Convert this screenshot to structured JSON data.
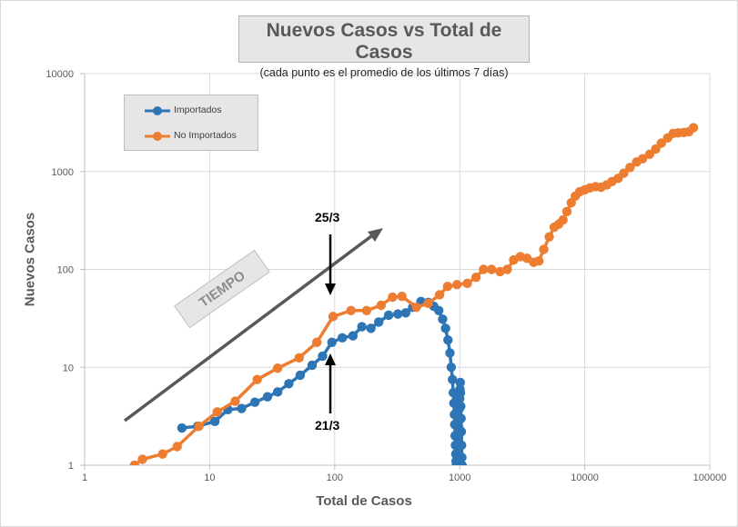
{
  "chart_data": {
    "type": "line",
    "title": "Nuevos Casos vs Total de Casos",
    "subtitle": "(cada punto es el promedio de los últimos 7 días)",
    "xlabel": "Total de Casos",
    "ylabel": "Nuevos Casos",
    "x_scale": "log",
    "y_scale": "log",
    "xlim": [
      1,
      100000
    ],
    "ylim": [
      1,
      10000
    ],
    "x_ticks": [
      "1",
      "10",
      "100",
      "1000",
      "10000",
      "100000"
    ],
    "y_ticks": [
      "1",
      "10",
      "100",
      "1000",
      "10000"
    ],
    "grid": true,
    "legend": "top-left",
    "series": [
      {
        "name": "Importados",
        "color": "#2e75b6",
        "points": [
          [
            6,
            2.4
          ],
          [
            8,
            2.5
          ],
          [
            11,
            2.8
          ],
          [
            14,
            3.7
          ],
          [
            18,
            3.8
          ],
          [
            23,
            4.4
          ],
          [
            29,
            5.0
          ],
          [
            35,
            5.6
          ],
          [
            43,
            6.8
          ],
          [
            53,
            8.3
          ],
          [
            66,
            10.5
          ],
          [
            80,
            13
          ],
          [
            95,
            18
          ],
          [
            115,
            20
          ],
          [
            140,
            21
          ],
          [
            165,
            26
          ],
          [
            195,
            25
          ],
          [
            225,
            29
          ],
          [
            270,
            34
          ],
          [
            320,
            35
          ],
          [
            370,
            36
          ],
          [
            420,
            41
          ],
          [
            490,
            47
          ],
          [
            560,
            46
          ],
          [
            620,
            42
          ],
          [
            680,
            38
          ],
          [
            730,
            31
          ],
          [
            770,
            25
          ],
          [
            805,
            19
          ],
          [
            835,
            14
          ],
          [
            855,
            10
          ],
          [
            875,
            7.5
          ],
          [
            888,
            5.5
          ],
          [
            898,
            4.3
          ],
          [
            906,
            3.3
          ],
          [
            912,
            2.6
          ],
          [
            918,
            2.0
          ],
          [
            924,
            1.6
          ],
          [
            930,
            1.3
          ],
          [
            934,
            1.1
          ],
          [
            940,
            1.0
          ],
          [
            955,
            1.2
          ],
          [
            965,
            1.5
          ],
          [
            975,
            1.9
          ],
          [
            985,
            2.4
          ],
          [
            990,
            3.0
          ],
          [
            995,
            3.8
          ],
          [
            1000,
            4.8
          ],
          [
            1005,
            6.0
          ],
          [
            1010,
            7.0
          ],
          [
            1015,
            5.5
          ],
          [
            1020,
            4.0
          ],
          [
            1025,
            3.0
          ],
          [
            1030,
            2.2
          ],
          [
            1035,
            1.6
          ],
          [
            1040,
            1.2
          ],
          [
            1045,
            1.0
          ]
        ]
      },
      {
        "name": "No Importados",
        "color": "#ed7d31",
        "points": [
          [
            2.5,
            1.0
          ],
          [
            2.9,
            1.15
          ],
          [
            4.2,
            1.3
          ],
          [
            5.5,
            1.55
          ],
          [
            8.2,
            2.5
          ],
          [
            11.5,
            3.5
          ],
          [
            16,
            4.5
          ],
          [
            24,
            7.5
          ],
          [
            35,
            9.8
          ],
          [
            52,
            12.5
          ],
          [
            72,
            18
          ],
          [
            97,
            33
          ],
          [
            135,
            38
          ],
          [
            180,
            38
          ],
          [
            235,
            43
          ],
          [
            290,
            52
          ],
          [
            345,
            53
          ],
          [
            450,
            41
          ],
          [
            560,
            45
          ],
          [
            690,
            55
          ],
          [
            800,
            67
          ],
          [
            950,
            70
          ],
          [
            1150,
            72
          ],
          [
            1350,
            83
          ],
          [
            1550,
            100
          ],
          [
            1800,
            100
          ],
          [
            2100,
            95
          ],
          [
            2400,
            100
          ],
          [
            2700,
            125
          ],
          [
            3050,
            135
          ],
          [
            3450,
            130
          ],
          [
            3900,
            118
          ],
          [
            4300,
            122
          ],
          [
            4700,
            160
          ],
          [
            5200,
            215
          ],
          [
            5700,
            270
          ],
          [
            6200,
            290
          ],
          [
            6700,
            320
          ],
          [
            7200,
            390
          ],
          [
            7800,
            480
          ],
          [
            8400,
            560
          ],
          [
            9100,
            620
          ],
          [
            10000,
            650
          ],
          [
            11000,
            680
          ],
          [
            12200,
            700
          ],
          [
            13500,
            690
          ],
          [
            15000,
            730
          ],
          [
            16500,
            790
          ],
          [
            18500,
            850
          ],
          [
            20500,
            960
          ],
          [
            23000,
            1100
          ],
          [
            26000,
            1250
          ],
          [
            29000,
            1350
          ],
          [
            33000,
            1500
          ],
          [
            37000,
            1700
          ],
          [
            41000,
            1950
          ],
          [
            46000,
            2200
          ],
          [
            51000,
            2450
          ],
          [
            56000,
            2480
          ],
          [
            62000,
            2500
          ],
          [
            68000,
            2550
          ],
          [
            74000,
            2800
          ]
        ]
      }
    ],
    "annotations": {
      "tiempo": "TIEMPO",
      "date_top": "25/3",
      "date_bottom": "21/3"
    }
  }
}
